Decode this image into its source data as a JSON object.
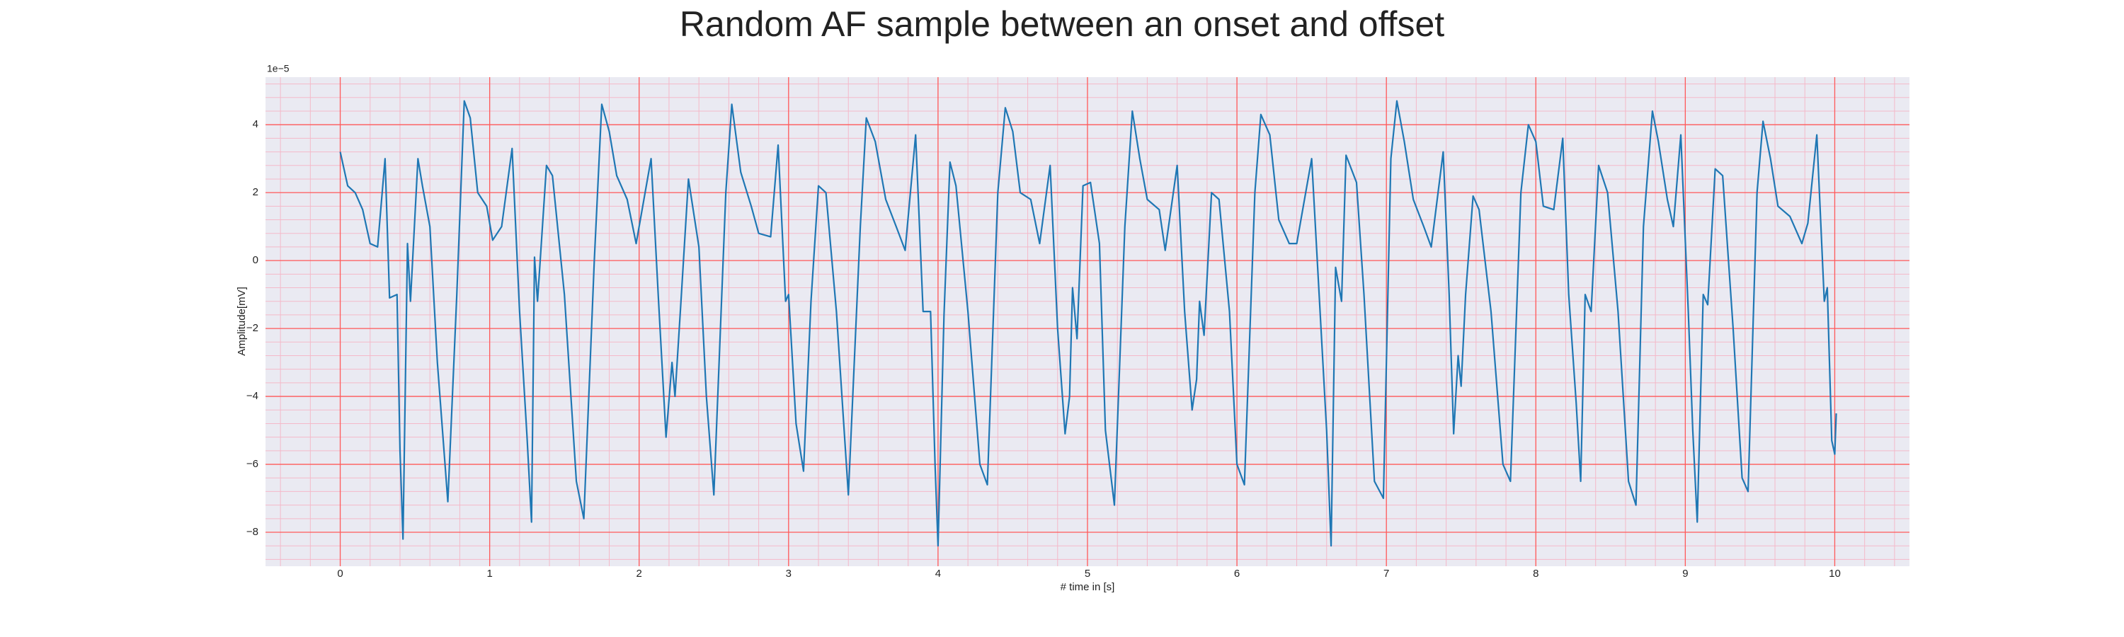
{
  "chart_data": {
    "type": "line",
    "title": "Random AF sample between an onset and offset",
    "xlabel": "# time in [s]",
    "ylabel": "Amplitude[mV]",
    "offset_label": "1e−5",
    "color": "#1f77b4",
    "grid": true,
    "grid_color": "#ff5a5a",
    "minor_grid_color": "#f4b9c9",
    "background": "#eaeaf2",
    "xlim": [
      -0.5,
      10.5
    ],
    "ylim": [
      -9,
      5.4
    ],
    "xticks": [
      0,
      1,
      2,
      3,
      4,
      5,
      6,
      7,
      8,
      9,
      10
    ],
    "yticks": [
      {
        "value": -8,
        "label": "−8"
      },
      {
        "value": -6,
        "label": "−6"
      },
      {
        "value": -4,
        "label": "−4"
      },
      {
        "value": -2,
        "label": "−2"
      },
      0,
      2,
      4
    ],
    "xminorticks": [
      -0.4,
      -0.2,
      0,
      0.2,
      0.4,
      0.6,
      0.8,
      1,
      1.2,
      1.4,
      1.6,
      1.8,
      2,
      2.2,
      2.4,
      2.6,
      2.8,
      3,
      3.2,
      3.4,
      3.6,
      3.8,
      4,
      4.2,
      4.4,
      4.6,
      4.8,
      5,
      5.2,
      5.4,
      5.6,
      5.8,
      6,
      6.2,
      6.4,
      6.6,
      6.8,
      7,
      7.2,
      7.4,
      7.6,
      7.8,
      8,
      8.2,
      8.4,
      8.6,
      8.8,
      9,
      9.2,
      9.4,
      9.6,
      9.8,
      10,
      10.2,
      10.4
    ],
    "yminorticks": [
      -8.8,
      -8.4,
      -8,
      -7.6,
      -7.2,
      -6.8,
      -6.4,
      -6,
      -5.6,
      -5.2,
      -4.8,
      -4.4,
      -4,
      -3.6,
      -3.2,
      -2.8,
      -2.4,
      -2,
      -1.6,
      -1.2,
      -0.8,
      -0.4,
      0,
      0.4,
      0.8,
      1.2,
      1.6,
      2,
      2.4,
      2.8,
      3.2,
      3.6,
      4,
      4.4,
      4.8,
      5.2
    ],
    "x": [
      0,
      0.05,
      0.1,
      0.15,
      0.2,
      0.25,
      0.3,
      0.33,
      0.38,
      0.4,
      0.42,
      0.45,
      0.47,
      0.52,
      0.55,
      0.6,
      0.65,
      0.72,
      0.78,
      0.83,
      0.87,
      0.92,
      0.98,
      1.02,
      1.08,
      1.15,
      1.2,
      1.25,
      1.28,
      1.3,
      1.32,
      1.38,
      1.42,
      1.5,
      1.58,
      1.63,
      1.7,
      1.75,
      1.8,
      1.85,
      1.92,
      1.98,
      2.08,
      2.13,
      2.18,
      2.22,
      2.24,
      2.28,
      2.33,
      2.4,
      2.45,
      2.5,
      2.58,
      2.62,
      2.68,
      2.75,
      2.8,
      2.88,
      2.93,
      2.98,
      3.0,
      3.05,
      3.1,
      3.15,
      3.2,
      3.25,
      3.32,
      3.4,
      3.48,
      3.52,
      3.58,
      3.65,
      3.72,
      3.78,
      3.85,
      3.9,
      3.95,
      3.98,
      4.0,
      4.04,
      4.08,
      4.12,
      4.2,
      4.28,
      4.33,
      4.4,
      4.45,
      4.5,
      4.55,
      4.62,
      4.68,
      4.75,
      4.8,
      4.85,
      4.88,
      4.9,
      4.93,
      4.97,
      5.02,
      5.08,
      5.12,
      5.18,
      5.25,
      5.3,
      5.35,
      5.4,
      5.48,
      5.52,
      5.6,
      5.65,
      5.7,
      5.73,
      5.75,
      5.78,
      5.83,
      5.88,
      5.95,
      6.0,
      6.05,
      6.12,
      6.16,
      6.22,
      6.28,
      6.35,
      6.4,
      6.5,
      6.55,
      6.6,
      6.63,
      6.66,
      6.7,
      6.73,
      6.8,
      6.85,
      6.92,
      6.98,
      7.03,
      7.07,
      7.12,
      7.18,
      7.25,
      7.3,
      7.38,
      7.42,
      7.45,
      7.48,
      7.5,
      7.53,
      7.58,
      7.62,
      7.7,
      7.78,
      7.83,
      7.9,
      7.95,
      8.0,
      8.05,
      8.12,
      8.18,
      8.22,
      8.27,
      8.3,
      8.33,
      8.37,
      8.42,
      8.48,
      8.55,
      8.62,
      8.67,
      8.72,
      8.78,
      8.82,
      8.88,
      8.92,
      8.97,
      9.02,
      9.05,
      9.08,
      9.12,
      9.15,
      9.2,
      9.25,
      9.32,
      9.38,
      9.42,
      9.48,
      9.52,
      9.57,
      9.62,
      9.7,
      9.78,
      9.82,
      9.88,
      9.93,
      9.95,
      9.98,
      10.0,
      10.01
    ],
    "values": [
      3.2,
      2.2,
      2.0,
      1.5,
      0.5,
      0.4,
      3.0,
      -1.1,
      -1.0,
      -5.6,
      -8.2,
      0.5,
      -1.2,
      3.0,
      2.2,
      1.0,
      -3,
      -7.1,
      -1,
      4.7,
      4.2,
      2.0,
      1.6,
      0.6,
      1.0,
      3.3,
      -1.5,
      -5.2,
      -7.7,
      0.1,
      -1.2,
      2.8,
      2.5,
      -1.0,
      -6.5,
      -7.6,
      0,
      4.6,
      3.8,
      2.5,
      1.8,
      0.5,
      3.0,
      -1.2,
      -5.2,
      -3.0,
      -4.0,
      -1.2,
      2.4,
      0.4,
      -4,
      -6.9,
      2,
      4.6,
      2.6,
      1.6,
      0.8,
      0.7,
      3.4,
      -1.2,
      -1.0,
      -4.8,
      -6.2,
      -1.2,
      2.2,
      2.0,
      -1.5,
      -6.9,
      1,
      4.2,
      3.5,
      1.8,
      1.0,
      0.3,
      3.7,
      -1.5,
      -1.5,
      -6.0,
      -8.4,
      -1.6,
      2.9,
      2.2,
      -1.5,
      -6.0,
      -6.6,
      2,
      4.5,
      3.8,
      2.0,
      1.8,
      0.5,
      2.8,
      -2.0,
      -5.1,
      -4,
      -0.8,
      -2.3,
      2.2,
      2.3,
      0.5,
      -5,
      -7.2,
      1,
      4.4,
      3.0,
      1.8,
      1.5,
      0.3,
      2.8,
      -1.5,
      -4.4,
      -3.5,
      -1.2,
      -2.2,
      2.0,
      1.8,
      -1.5,
      -6.0,
      -6.6,
      2,
      4.3,
      3.7,
      1.2,
      0.5,
      0.5,
      3.0,
      -1.0,
      -5.0,
      -8.4,
      -0.2,
      -1.2,
      3.1,
      2.3,
      -1,
      -6.5,
      -7.0,
      3,
      4.7,
      3.5,
      1.8,
      1.0,
      0.4,
      3.2,
      -1.0,
      -5.1,
      -2.8,
      -3.7,
      -1,
      1.9,
      1.5,
      -1.5,
      -6.0,
      -6.5,
      2,
      4.0,
      3.5,
      1.6,
      1.5,
      3.6,
      -1.0,
      -4.2,
      -6.5,
      -1.0,
      -1.5,
      2.8,
      2.0,
      -1.5,
      -6.5,
      -7.2,
      1,
      4.4,
      3.5,
      1.8,
      1.0,
      3.7,
      -1.5,
      -5.0,
      -7.7,
      -1.0,
      -1.3,
      2.7,
      2.5,
      -2.0,
      -6.4,
      -6.8,
      2,
      4.1,
      3.0,
      1.6,
      1.3,
      0.5,
      1.1,
      3.7,
      -1.2,
      -0.8,
      -5.3,
      -5.7,
      -4.5
    ]
  }
}
